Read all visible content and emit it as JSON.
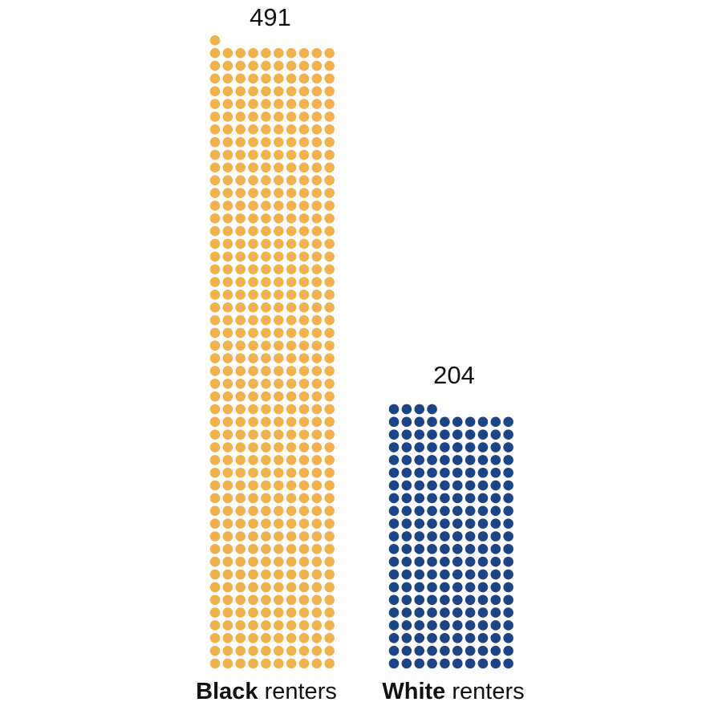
{
  "chart_data": {
    "type": "bar",
    "subtype": "waffle-dot",
    "categories": [
      {
        "bold": "Black",
        "rest": " renters"
      },
      {
        "bold": "White",
        "rest": " renters"
      }
    ],
    "values": [
      491,
      204
    ],
    "value_labels": [
      "491",
      "204"
    ],
    "colors": [
      "#EFB24E",
      "#1D4586"
    ],
    "dots_per_row": 10
  }
}
